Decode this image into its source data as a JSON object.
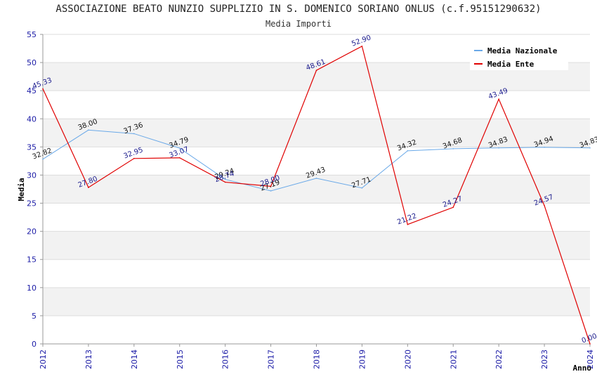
{
  "title": "ASSOCIAZIONE BEATO NUNZIO SUPPLIZIO IN S. DOMENICO SORIANO ONLUS (c.f.95151290632)",
  "subtitle": "Media Importi",
  "chart_data": {
    "type": "line",
    "categories": [
      "2012",
      "2013",
      "2014",
      "2015",
      "2016",
      "2017",
      "2018",
      "2019",
      "2020",
      "2021",
      "2022",
      "2023",
      "2024"
    ],
    "series": [
      {
        "name": "Media Nazionale",
        "color": "#6aa9e8",
        "values": [
          32.82,
          38.0,
          37.36,
          34.79,
          29.24,
          27.19,
          29.43,
          27.71,
          34.32,
          34.68,
          34.83,
          34.94,
          34.83
        ],
        "labels": [
          "32.82",
          "38.00",
          "37.36",
          "34.79",
          "29.24",
          "27.19",
          "29.43",
          "27.71",
          "34.32",
          "34.68",
          "34.83",
          "34.94",
          "34.83"
        ]
      },
      {
        "name": "Media Ente",
        "color": "#e00000",
        "values": [
          45.33,
          27.8,
          32.95,
          33.07,
          28.74,
          28.0,
          48.61,
          52.9,
          21.22,
          24.27,
          43.49,
          24.57,
          0.0
        ],
        "labels": [
          "45.33",
          "27.80",
          "32.95",
          "33.07",
          "28.74",
          "28.00",
          "48.61",
          "52.90",
          "21.22",
          "24.27",
          "43.49",
          "24.57",
          "0.00"
        ]
      }
    ],
    "ylabel": "Media",
    "xlabel": "Anno",
    "ylim": [
      0,
      55
    ],
    "yticks": [
      "0",
      "5",
      "10",
      "15",
      "20",
      "25",
      "30",
      "35",
      "40",
      "45",
      "50",
      "55"
    ],
    "grid": true,
    "legend": "top-right"
  }
}
